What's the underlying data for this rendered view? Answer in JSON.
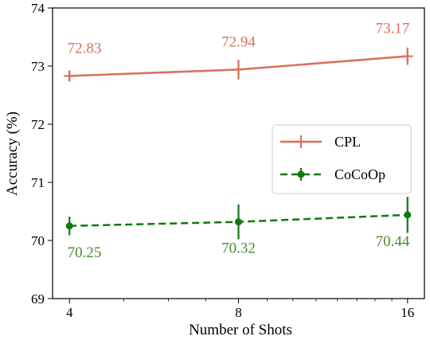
{
  "chart_data": {
    "type": "line",
    "title": "",
    "xlabel": "Number of Shots",
    "ylabel": "Accuracy (%)",
    "x": [
      4,
      8,
      16
    ],
    "x_tick_labels": [
      "4",
      "8",
      "16"
    ],
    "xscale": "log2",
    "ylim": [
      69,
      74
    ],
    "y_ticks": [
      69,
      70,
      71,
      72,
      73,
      74
    ],
    "y_tick_labels": [
      "69",
      "70",
      "71",
      "72",
      "73",
      "74"
    ],
    "grid": false,
    "legend_position": "center-right",
    "series": [
      {
        "name": "CPL",
        "values": [
          72.83,
          72.94,
          73.17
        ],
        "errors": [
          0.08,
          0.17,
          0.15
        ],
        "data_labels": [
          "72.83",
          "72.94",
          "73.17"
        ],
        "color": "#d9705a",
        "label_color": "#d9705a",
        "line_style": "solid",
        "marker": "plus",
        "label_position": "above"
      },
      {
        "name": "CoCoOp",
        "values": [
          70.25,
          70.32,
          70.44
        ],
        "errors": [
          0.16,
          0.3,
          0.31
        ],
        "data_labels": [
          "70.25",
          "70.32",
          "70.44"
        ],
        "color": "#0e7a0e",
        "label_color": "#4a8a2a",
        "line_style": "dashed",
        "marker": "circle",
        "label_position": "below"
      }
    ]
  }
}
